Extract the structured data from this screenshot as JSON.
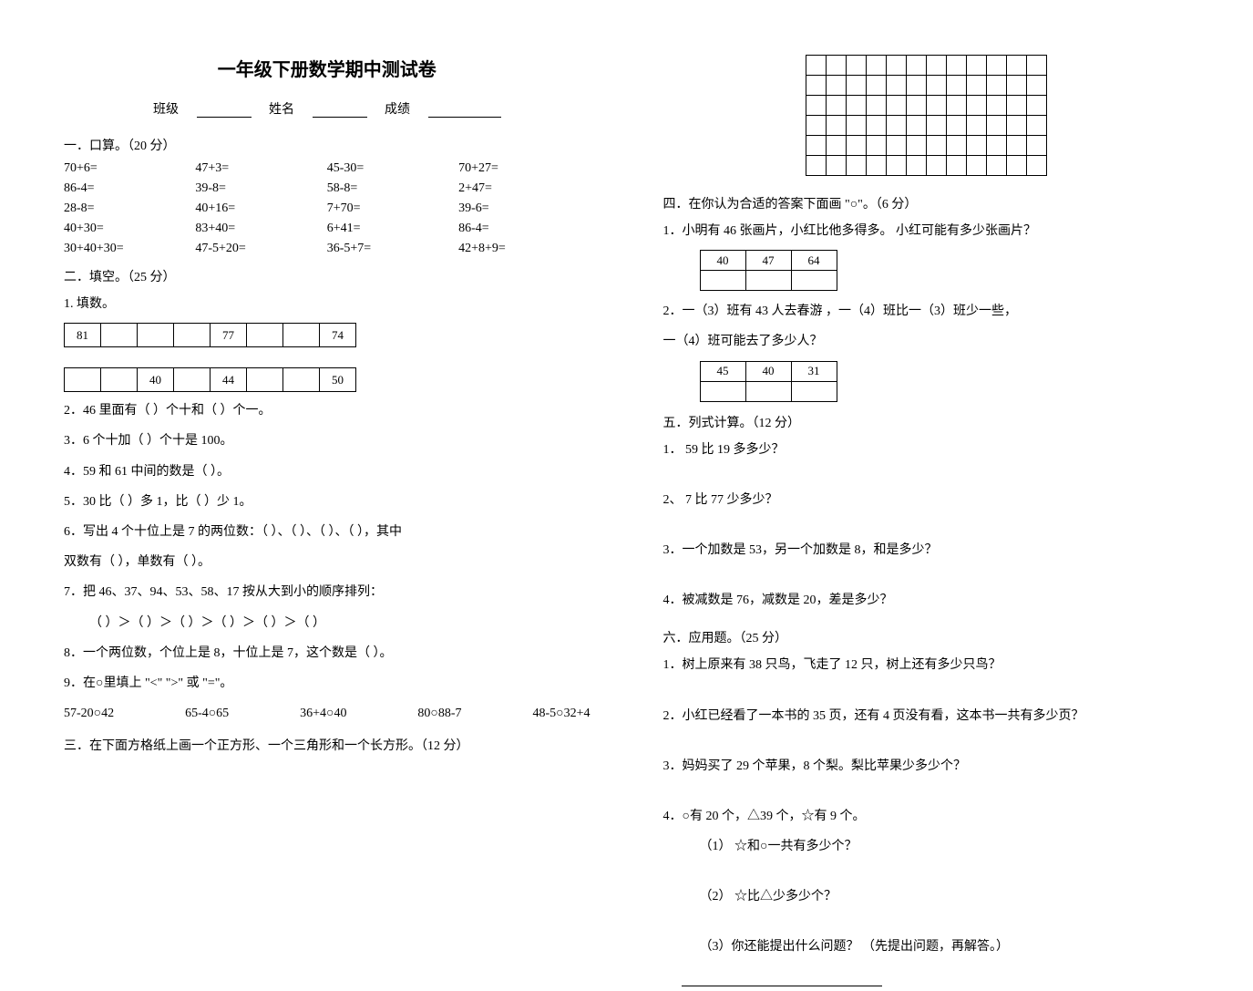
{
  "title": "一年级下册数学期中测试卷",
  "header": {
    "class_label": "班级",
    "name_label": "姓名",
    "score_label": "成绩"
  },
  "s1": {
    "title": "一．口算。（20 分）",
    "rows": [
      [
        "70+6=",
        "47+3=",
        "45-30=",
        "70+27="
      ],
      [
        "86-4=",
        "39-8=",
        "58-8=",
        "2+47="
      ],
      [
        "28-8=",
        "40+16=",
        "7+70=",
        "39-6="
      ],
      [
        "40+30=",
        "83+40=",
        "6+41=",
        "86-4="
      ],
      [
        "30+40+30=",
        "47-5+20=",
        "36-5+7=",
        "42+8+9="
      ]
    ]
  },
  "s2": {
    "title": "二．填空。（25 分）",
    "q1_label": "1.    填数。",
    "table1": [
      "81",
      "",
      "",
      "",
      "77",
      "",
      "",
      "74"
    ],
    "table2": [
      "",
      "",
      "40",
      "",
      "44",
      "",
      "",
      "50"
    ],
    "q2": "2．46 里面有（    ）个十和（    ）个一。",
    "q3": "3．6 个十加（    ）个十是 100。",
    "q4": "4．59 和 61 中间的数是（    ）。",
    "q5": "5．30 比（    ）多 1，比（    ）少 1。",
    "q6a": "6．写出 4 个十位上是 7 的两位数：（    ）、（    ）、（    ）、（    ），其中",
    "q6b": "双数有（          ），单数有（          ）。",
    "q7a": "7．把 46、37、94、53、58、17 按从大到小的顺序排列：",
    "q7b": "（    ）＞（    ）＞（    ）＞（    ）＞（    ）＞（    ）",
    "q8": "8．一个两位数，个位上是 8，十位上是 7，这个数是（    ）。",
    "q9a": "9．在○里填上 \"<\" \">\" 或 \"=\"。",
    "q9b_items": [
      "57-20○42",
      "65-4○65",
      "36+4○40",
      "80○88-7",
      "48-5○32+4"
    ]
  },
  "s3": {
    "title": "三．在下面方格纸上画一个正方形、一个三角形和一个长方形。（12 分）",
    "grid_rows": 6,
    "grid_cols": 12
  },
  "s4": {
    "title": "四．在你认为合适的答案下面画 \"○\"。（6 分）",
    "q1": "1．小明有 46 张画片，小红比他多得多。 小红可能有多少张画片？",
    "q1_opts": [
      "40",
      "47",
      "64"
    ],
    "q2a": "2．一（3）班有 43 人去春游 ，一（4）班比一（3）班少一些，",
    "q2b": "一（4）班可能去了多少人？",
    "q2_opts": [
      "45",
      "40",
      "31"
    ]
  },
  "s5": {
    "title": "五．列式计算。（12 分）",
    "q1": "1． 59 比 19 多多少？",
    "q2": "2、 7 比 77 少多少？",
    "q3": "3．一个加数是 53，另一个加数是 8，和是多少？",
    "q4": "4．被减数是 76，减数是 20，差是多少？"
  },
  "s6": {
    "title": "六．应用题。（25 分）",
    "q1": "1．树上原来有 38 只鸟，飞走了 12 只，树上还有多少只鸟？",
    "q2": "2．小红已经看了一本书的 35 页，还有 4 页没有看，这本书一共有多少页？",
    "q3": "3．妈妈买了 29 个苹果，8 个梨。梨比苹果少多少个？",
    "q4": "4．○有 20 个，△39 个，☆有 9 个。",
    "q4_1": "（1） ☆和○一共有多少个？",
    "q4_2": "（2） ☆比△少多少个？",
    "q4_3": "（3）你还能提出什么问题？ （先提出问题，再解答。）"
  }
}
